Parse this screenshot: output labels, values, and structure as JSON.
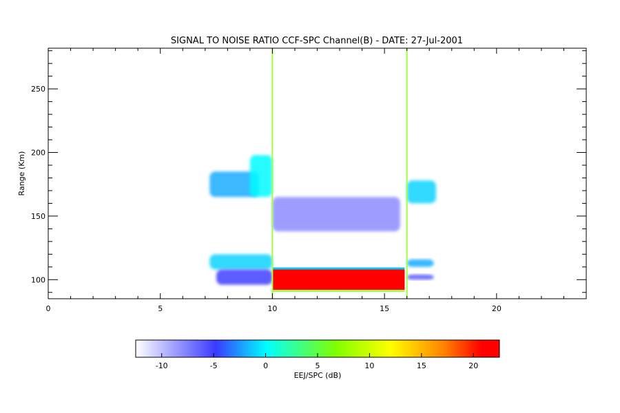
{
  "chart_data": [
    {
      "type": "heatmap",
      "title": "SIGNAL TO NOISE RATIO CCF-SPC Channel(B) - DATE: 27-Jul-2001",
      "xlabel": "",
      "ylabel": "Range (Km)",
      "xlim": [
        0,
        24
      ],
      "ylim": [
        85,
        282
      ],
      "x_ticks": [
        0,
        5,
        10,
        15,
        20
      ],
      "y_ticks": [
        100,
        150,
        200,
        250
      ],
      "x_tick_labels": [
        "0",
        "5",
        "10",
        "15",
        "20"
      ],
      "y_tick_labels": [
        "100",
        "150",
        "200",
        "250"
      ],
      "grid": false,
      "regions": [
        {
          "x": [
            7.2,
            9.4
          ],
          "y": [
            165,
            185
          ],
          "value": -2
        },
        {
          "x": [
            9.0,
            10.0
          ],
          "y": [
            165,
            198
          ],
          "value": 0
        },
        {
          "x": [
            7.2,
            10.0
          ],
          "y": [
            108,
            120
          ],
          "value": -1
        },
        {
          "x": [
            7.5,
            10.0
          ],
          "y": [
            96,
            108
          ],
          "value": -5
        },
        {
          "x": [
            10.0,
            15.9
          ],
          "y": [
            92,
            108
          ],
          "value": 22
        },
        {
          "x": [
            16.0,
            17.3
          ],
          "y": [
            160,
            178
          ],
          "value": -1
        },
        {
          "x": [
            16.0,
            17.2
          ],
          "y": [
            110,
            116
          ],
          "value": -2
        },
        {
          "x": [
            16.0,
            17.2
          ],
          "y": [
            100,
            104
          ],
          "value": -6
        },
        {
          "x": [
            10.0,
            15.7
          ],
          "y": [
            138,
            165
          ],
          "value": -8
        }
      ],
      "vertical_lines": [
        10.0,
        16.0
      ]
    },
    {
      "type": "heatmap",
      "title": "",
      "xlabel": "EEJ/SPC (dB)",
      "xlim": [
        -12.5,
        22.5
      ],
      "x_ticks": [
        -10,
        -5,
        0,
        5,
        10,
        15,
        20
      ],
      "x_tick_labels": [
        "-10",
        "-5",
        "0",
        "5",
        "10",
        "15",
        "20"
      ],
      "colormap": [
        "#ffffff",
        "#3a3aff",
        "#00ffff",
        "#7fff00",
        "#ffff00",
        "#ff8000",
        "#ff0000"
      ]
    }
  ]
}
